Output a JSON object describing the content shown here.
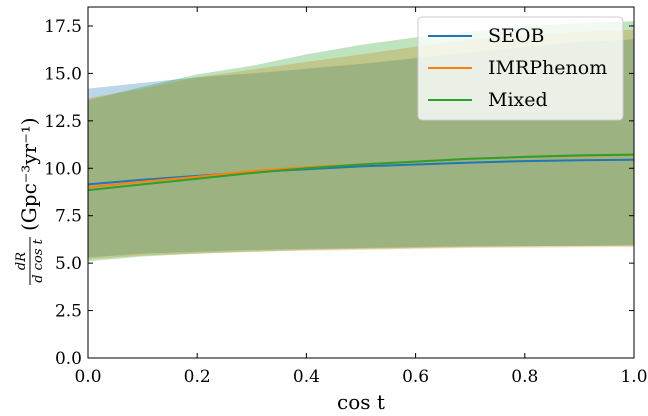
{
  "chart_data": {
    "type": "area",
    "xlabel": "cos t",
    "ylabel_fraction": {
      "numerator": "dR",
      "denominator": "d cos t"
    },
    "ylabel_units": "(Gpc⁻³yr⁻¹)",
    "xlim": [
      0.0,
      1.0
    ],
    "ylim": [
      0.0,
      18.5
    ],
    "xticks": [
      0.0,
      0.2,
      0.4,
      0.6,
      0.8,
      1.0
    ],
    "xtick_labels": [
      "0.0",
      "0.2",
      "0.4",
      "0.6",
      "0.8",
      "1.0"
    ],
    "yticks": [
      0.0,
      2.5,
      5.0,
      7.5,
      10.0,
      12.5,
      15.0,
      17.5
    ],
    "ytick_labels": [
      "0.0",
      "2.5",
      "5.0",
      "7.5",
      "10.0",
      "12.5",
      "15.0",
      "17.5"
    ],
    "legend_position": "top-right",
    "grid": false,
    "x": [
      0.0,
      0.1,
      0.2,
      0.3,
      0.4,
      0.5,
      0.6,
      0.7,
      0.8,
      0.9,
      1.0
    ],
    "series": [
      {
        "name": "SEOB",
        "color": "#1f77b4",
        "median": [
          9.15,
          9.4,
          9.6,
          9.8,
          9.95,
          10.1,
          10.2,
          10.3,
          10.38,
          10.42,
          10.45
        ],
        "upper": [
          14.2,
          14.5,
          14.8,
          15.0,
          15.25,
          15.5,
          15.8,
          16.1,
          16.4,
          16.65,
          16.8
        ],
        "lower": [
          5.3,
          5.5,
          5.6,
          5.7,
          5.75,
          5.8,
          5.85,
          5.9,
          5.9,
          5.92,
          5.95
        ]
      },
      {
        "name": "IMRPhenom",
        "color": "#ff7f0e",
        "median": [
          9.0,
          9.3,
          9.55,
          9.85,
          10.05,
          10.2,
          10.35,
          10.5,
          10.6,
          10.65,
          10.7
        ],
        "upper": [
          13.7,
          14.2,
          14.8,
          15.2,
          15.6,
          16.0,
          16.4,
          16.8,
          17.0,
          17.2,
          17.3
        ],
        "lower": [
          5.2,
          5.4,
          5.5,
          5.6,
          5.65,
          5.7,
          5.75,
          5.8,
          5.82,
          5.84,
          5.85
        ]
      },
      {
        "name": "Mixed",
        "color": "#2ca02c",
        "median": [
          8.85,
          9.15,
          9.45,
          9.75,
          10.0,
          10.2,
          10.35,
          10.5,
          10.6,
          10.68,
          10.72
        ],
        "upper": [
          13.6,
          14.3,
          14.95,
          15.4,
          16.0,
          16.5,
          16.9,
          17.2,
          17.5,
          17.65,
          17.75
        ],
        "lower": [
          5.1,
          5.35,
          5.5,
          5.6,
          5.7,
          5.75,
          5.8,
          5.85,
          5.88,
          5.9,
          5.92
        ]
      }
    ]
  }
}
